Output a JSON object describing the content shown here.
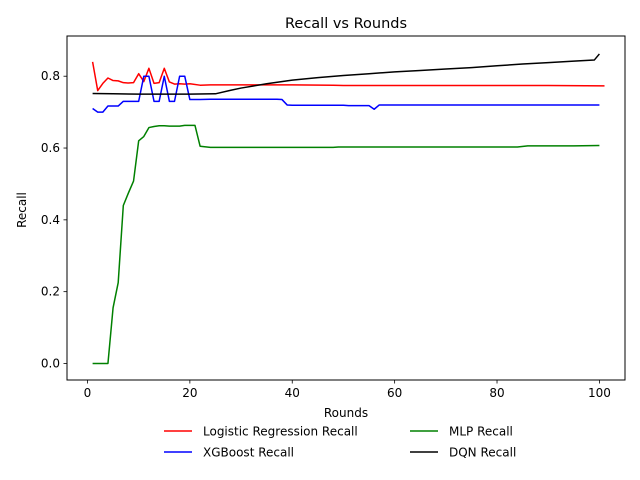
{
  "chart_data": {
    "type": "line",
    "title": "Recall vs Rounds",
    "xlabel": "Rounds",
    "ylabel": "Recall",
    "xlim": [
      -4,
      105
    ],
    "ylim": [
      -0.046,
      0.912
    ],
    "xticks": [
      0,
      20,
      40,
      60,
      80,
      100
    ],
    "yticks": [
      0.0,
      0.2,
      0.4,
      0.6,
      0.8
    ],
    "grid": false,
    "legend_position": "bottom",
    "series": [
      {
        "name": "Logistic Regression Recall",
        "color": "#ff0000",
        "points": [
          [
            1,
            0.84
          ],
          [
            2,
            0.76
          ],
          [
            3,
            0.78
          ],
          [
            4,
            0.795
          ],
          [
            5,
            0.788
          ],
          [
            6,
            0.787
          ],
          [
            7,
            0.782
          ],
          [
            8,
            0.781
          ],
          [
            9,
            0.782
          ],
          [
            10,
            0.807
          ],
          [
            11,
            0.785
          ],
          [
            12,
            0.822
          ],
          [
            13,
            0.78
          ],
          [
            14,
            0.782
          ],
          [
            15,
            0.822
          ],
          [
            16,
            0.784
          ],
          [
            17,
            0.778
          ],
          [
            18,
            0.779
          ],
          [
            19,
            0.778
          ],
          [
            20,
            0.779
          ],
          [
            22,
            0.775
          ],
          [
            24,
            0.776
          ],
          [
            30,
            0.776
          ],
          [
            40,
            0.776
          ],
          [
            48,
            0.775
          ],
          [
            50,
            0.774
          ],
          [
            60,
            0.774
          ],
          [
            70,
            0.774
          ],
          [
            80,
            0.774
          ],
          [
            90,
            0.774
          ],
          [
            101,
            0.773
          ]
        ]
      },
      {
        "name": "XGBoost Recall",
        "color": "#0000ff",
        "points": [
          [
            1,
            0.71
          ],
          [
            2,
            0.7
          ],
          [
            3,
            0.7
          ],
          [
            4,
            0.717
          ],
          [
            5,
            0.717
          ],
          [
            6,
            0.717
          ],
          [
            7,
            0.73
          ],
          [
            8,
            0.73
          ],
          [
            9,
            0.73
          ],
          [
            10,
            0.73
          ],
          [
            11,
            0.8
          ],
          [
            12,
            0.8
          ],
          [
            13,
            0.73
          ],
          [
            14,
            0.73
          ],
          [
            15,
            0.8
          ],
          [
            16,
            0.73
          ],
          [
            17,
            0.73
          ],
          [
            18,
            0.8
          ],
          [
            19,
            0.8
          ],
          [
            20,
            0.735
          ],
          [
            22,
            0.735
          ],
          [
            24,
            0.736
          ],
          [
            30,
            0.736
          ],
          [
            37,
            0.736
          ],
          [
            38,
            0.735
          ],
          [
            39,
            0.72
          ],
          [
            40,
            0.719
          ],
          [
            50,
            0.719
          ],
          [
            51,
            0.718
          ],
          [
            55,
            0.718
          ],
          [
            56,
            0.708
          ],
          [
            57,
            0.72
          ],
          [
            70,
            0.72
          ],
          [
            80,
            0.72
          ],
          [
            90,
            0.72
          ],
          [
            100,
            0.72
          ]
        ]
      },
      {
        "name": "MLP Recall",
        "color": "#008000",
        "points": [
          [
            1,
            0.0
          ],
          [
            2,
            0.0
          ],
          [
            3,
            0.0
          ],
          [
            4,
            0.0
          ],
          [
            5,
            0.155
          ],
          [
            6,
            0.225
          ],
          [
            7,
            0.44
          ],
          [
            8,
            0.475
          ],
          [
            9,
            0.508
          ],
          [
            10,
            0.62
          ],
          [
            11,
            0.632
          ],
          [
            12,
            0.657
          ],
          [
            13,
            0.66
          ],
          [
            14,
            0.662
          ],
          [
            15,
            0.662
          ],
          [
            16,
            0.661
          ],
          [
            17,
            0.661
          ],
          [
            18,
            0.661
          ],
          [
            19,
            0.663
          ],
          [
            20,
            0.663
          ],
          [
            21,
            0.663
          ],
          [
            22,
            0.605
          ],
          [
            24,
            0.602
          ],
          [
            30,
            0.602
          ],
          [
            40,
            0.602
          ],
          [
            48,
            0.602
          ],
          [
            49,
            0.603
          ],
          [
            60,
            0.603
          ],
          [
            70,
            0.603
          ],
          [
            80,
            0.603
          ],
          [
            84,
            0.603
          ],
          [
            86,
            0.606
          ],
          [
            90,
            0.606
          ],
          [
            95,
            0.606
          ],
          [
            100,
            0.607
          ]
        ]
      },
      {
        "name": "DQN Recall",
        "color": "#000000",
        "points": [
          [
            1,
            0.752
          ],
          [
            5,
            0.751
          ],
          [
            10,
            0.75
          ],
          [
            15,
            0.75
          ],
          [
            20,
            0.75
          ],
          [
            25,
            0.751
          ],
          [
            28,
            0.761
          ],
          [
            30,
            0.767
          ],
          [
            35,
            0.779
          ],
          [
            40,
            0.789
          ],
          [
            45,
            0.796
          ],
          [
            50,
            0.802
          ],
          [
            55,
            0.807
          ],
          [
            60,
            0.812
          ],
          [
            65,
            0.816
          ],
          [
            70,
            0.82
          ],
          [
            75,
            0.824
          ],
          [
            80,
            0.829
          ],
          [
            85,
            0.834
          ],
          [
            90,
            0.838
          ],
          [
            95,
            0.842
          ],
          [
            99,
            0.845
          ],
          [
            100,
            0.862
          ]
        ]
      }
    ]
  }
}
